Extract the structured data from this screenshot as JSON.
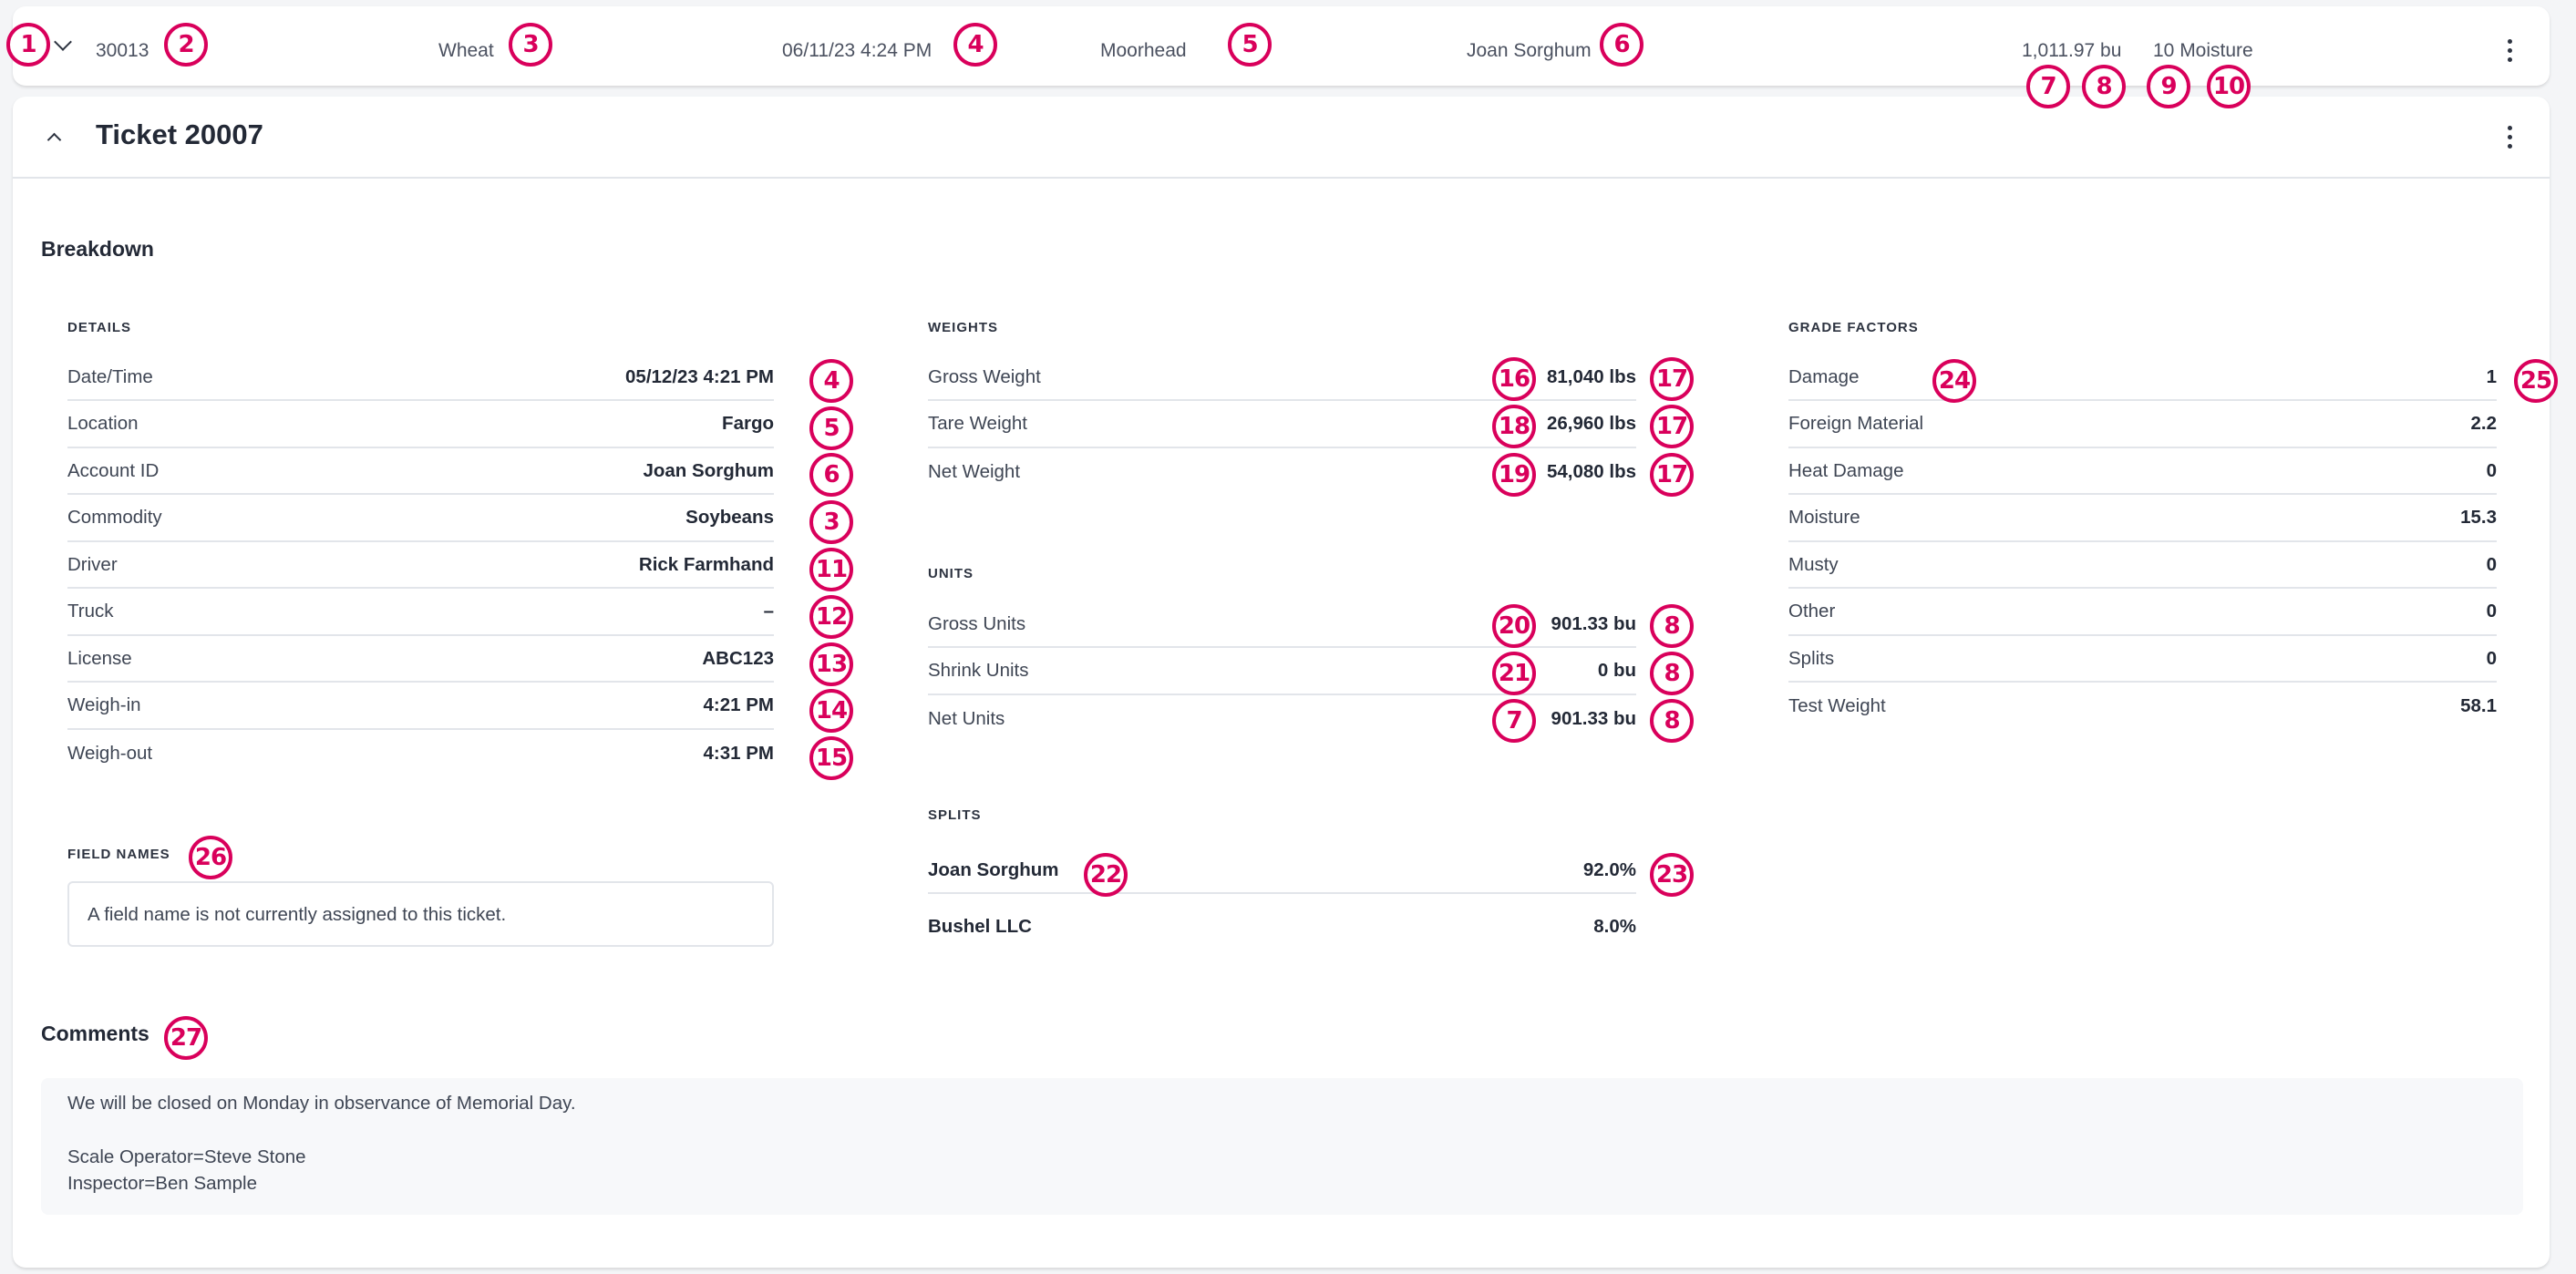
{
  "summary_row": {
    "ticket_id": "30013",
    "commodity": "Wheat",
    "date_time": "06/11/23 4:24 PM",
    "location": "Moorhead",
    "account": "Joan Sorghum",
    "net_units": "1,011.97 bu",
    "grade": "10 Moisture",
    "expand_icon": "chevron-down-icon",
    "menu_icon": "more-vertical-icon"
  },
  "ticket": {
    "title": "Ticket 20007",
    "collapse_icon": "chevron-up-icon",
    "menu_icon": "more-vertical-icon",
    "breakdown_heading": "Breakdown",
    "details": {
      "heading": "Details",
      "rows": [
        {
          "label": "Date/Time",
          "value": "05/12/23 4:21 PM"
        },
        {
          "label": "Location",
          "value": "Fargo"
        },
        {
          "label": "Account ID",
          "value": "Joan Sorghum"
        },
        {
          "label": "Commodity",
          "value": "Soybeans"
        },
        {
          "label": "Driver",
          "value": "Rick Farmhand"
        },
        {
          "label": "Truck",
          "value": "–"
        },
        {
          "label": "License",
          "value": "ABC123"
        },
        {
          "label": "Weigh-in",
          "value": "4:21 PM"
        },
        {
          "label": "Weigh-out",
          "value": "4:31 PM"
        }
      ]
    },
    "weights": {
      "heading": "Weights",
      "rows": [
        {
          "label": "Gross Weight",
          "value": "81,040 lbs"
        },
        {
          "label": "Tare Weight",
          "value": "26,960 lbs"
        },
        {
          "label": "Net Weight",
          "value": "54,080 lbs"
        }
      ]
    },
    "units": {
      "heading": "Units",
      "rows": [
        {
          "label": "Gross Units",
          "value": "901.33 bu"
        },
        {
          "label": "Shrink Units",
          "value": "0 bu"
        },
        {
          "label": "Net Units",
          "value": "901.33 bu"
        }
      ]
    },
    "splits": {
      "heading": "Splits",
      "rows": [
        {
          "label": "Joan Sorghum",
          "value": "92.0%"
        },
        {
          "label": "Bushel LLC",
          "value": "8.0%"
        }
      ]
    },
    "grade_factors": {
      "heading": "Grade Factors",
      "rows": [
        {
          "label": "Damage",
          "value": "1"
        },
        {
          "label": "Foreign Material",
          "value": "2.2"
        },
        {
          "label": "Heat Damage",
          "value": "0"
        },
        {
          "label": "Moisture",
          "value": "15.3"
        },
        {
          "label": "Musty",
          "value": "0"
        },
        {
          "label": "Other",
          "value": "0"
        },
        {
          "label": "Splits",
          "value": "0"
        },
        {
          "label": "Test Weight",
          "value": "58.1"
        }
      ]
    },
    "field_names": {
      "heading": "Field Names",
      "empty_message": "A field name is not currently assigned to this ticket."
    },
    "comments": {
      "heading": "Comments",
      "lines": [
        "We will be closed on Monday in observance of Memorial Day.",
        "Scale Operator=Steve Stone",
        "Inspector=Ben Sample"
      ]
    }
  },
  "annotation_color": "#d9005b",
  "annotations": [
    "1",
    "2",
    "3",
    "4",
    "5",
    "6",
    "7",
    "8",
    "9",
    "10",
    "11",
    "12",
    "13",
    "14",
    "15",
    "16",
    "17",
    "18",
    "19",
    "20",
    "21",
    "22",
    "23",
    "24",
    "25",
    "26",
    "27"
  ]
}
